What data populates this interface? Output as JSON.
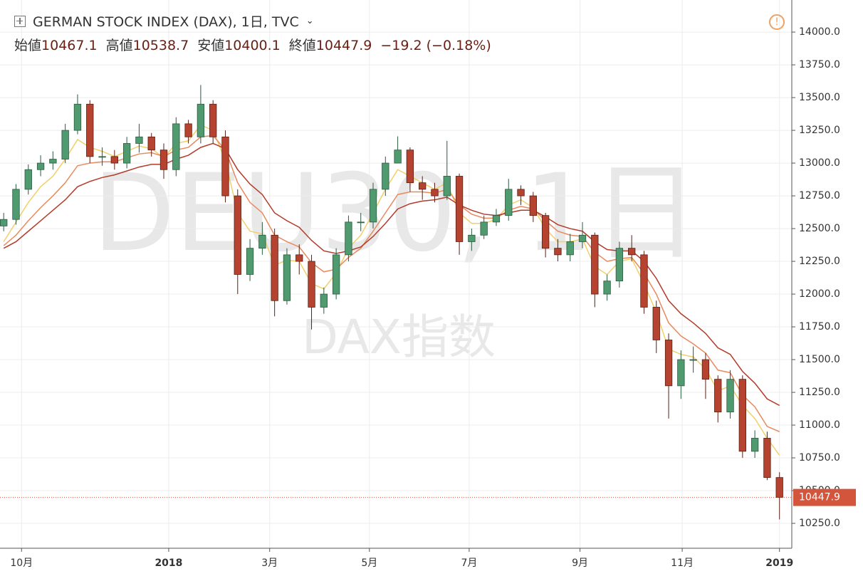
{
  "chart_data": {
    "type": "candlestick",
    "title": "GERMAN STOCK INDEX (DAX), 1日, TVC",
    "watermark": "DEU30, 1日",
    "watermark_sub": "DAX指数",
    "ohlc_labels": [
      {
        "label": "始値",
        "value": "10467.1"
      },
      {
        "label": "高値",
        "value": "10538.7"
      },
      {
        "label": "安値",
        "value": "10400.1"
      },
      {
        "label": "終値",
        "value": "10447.9"
      }
    ],
    "change": "−19.2 (−0.18%)",
    "last_price": 10447.9,
    "last_price_color": "#d2553c",
    "up_color": "#4f9a6f",
    "up_edge": "#2b5a40",
    "down_color": "#b5432f",
    "down_edge": "#5a1f14",
    "open": [
      12520,
      12570,
      12800,
      12950,
      13000,
      13030,
      13250,
      13450,
      13050,
      13050,
      13000,
      13150,
      13200,
      13100,
      12950,
      13300,
      13200,
      13450,
      13200,
      12750,
      12150,
      12350,
      12450,
      11950,
      12300,
      12250,
      11900,
      12000,
      12300,
      12550,
      12550,
      12800,
      13000,
      13100,
      12850,
      12800,
      12750,
      12900,
      12400,
      12450,
      12550,
      12600,
      12800,
      12750,
      12600,
      12350,
      12300,
      12400,
      12450,
      12000,
      12100,
      12350,
      12300,
      11900,
      11650,
      11300,
      11500,
      11500,
      11350,
      11100,
      11350,
      10800,
      10900,
      10600
    ],
    "high": [
      12620,
      12840,
      12990,
      13060,
      13090,
      13300,
      13525,
      13480,
      13120,
      13100,
      13200,
      13300,
      13230,
      13150,
      13350,
      13330,
      13596,
      13480,
      13250,
      12800,
      12420,
      12550,
      12500,
      12350,
      12380,
      12300,
      12050,
      12350,
      12600,
      12620,
      12850,
      13050,
      13204,
      13120,
      12900,
      12850,
      13170,
      12920,
      12500,
      12600,
      12650,
      12880,
      12830,
      12780,
      12620,
      12420,
      12460,
      12550,
      12470,
      12150,
      12400,
      12450,
      12330,
      11950,
      11700,
      11570,
      11600,
      11550,
      11380,
      11420,
      11380,
      10960,
      10950,
      10640
    ],
    "low": [
      12480,
      12530,
      12760,
      12900,
      12950,
      13000,
      13220,
      13000,
      12980,
      12950,
      12960,
      13080,
      13050,
      12880,
      12900,
      13150,
      13150,
      13150,
      12700,
      12000,
      12100,
      12300,
      11830,
      11920,
      12150,
      11730,
      11850,
      11960,
      12250,
      12480,
      12500,
      12750,
      13000,
      12780,
      12720,
      12700,
      12720,
      12300,
      12330,
      12420,
      12520,
      12560,
      12680,
      12550,
      12280,
      12250,
      12250,
      12350,
      11900,
      11950,
      12050,
      12250,
      11850,
      11550,
      11050,
      11200,
      11400,
      11200,
      11020,
      11050,
      10750,
      10750,
      10580,
      10280
    ],
    "close": [
      12570,
      12800,
      12950,
      13000,
      13030,
      13250,
      13450,
      13050,
      13050,
      13000,
      13150,
      13200,
      13100,
      12950,
      13300,
      13200,
      13450,
      13200,
      12750,
      12150,
      12350,
      12450,
      11950,
      12300,
      12250,
      11900,
      12000,
      12300,
      12550,
      12550,
      12800,
      13000,
      13100,
      12850,
      12800,
      12750,
      12900,
      12400,
      12450,
      12550,
      12600,
      12800,
      12750,
      12600,
      12350,
      12300,
      12400,
      12450,
      12000,
      12100,
      12350,
      12300,
      11900,
      11650,
      11300,
      11500,
      11500,
      11350,
      11100,
      11350,
      10800,
      10900,
      10600,
      10447.9
    ],
    "series": [
      {
        "color": "#f2cf6b",
        "values": [
          12400,
          12550,
          12700,
          12820,
          12900,
          13030,
          13180,
          13120,
          13090,
          13050,
          13090,
          13130,
          13110,
          13040,
          13150,
          13170,
          13290,
          13250,
          13020,
          12620,
          12480,
          12460,
          12220,
          12260,
          12250,
          12080,
          12040,
          12160,
          12350,
          12450,
          12620,
          12800,
          12950,
          12900,
          12850,
          12800,
          12850,
          12620,
          12540,
          12540,
          12570,
          12680,
          12720,
          12660,
          12500,
          12400,
          12400,
          12420,
          12210,
          12150,
          12250,
          12270,
          12080,
          11860,
          11580,
          11540,
          11520,
          11430,
          11260,
          11300,
          11150,
          11050,
          10900,
          10770
        ]
      },
      {
        "color": "#e88a5e",
        "values": [
          12370,
          12450,
          12560,
          12660,
          12750,
          12850,
          12980,
          13000,
          13010,
          13010,
          13040,
          13070,
          13080,
          13050,
          13100,
          13120,
          13200,
          13210,
          13100,
          12850,
          12700,
          12620,
          12450,
          12400,
          12360,
          12240,
          12170,
          12190,
          12280,
          12350,
          12480,
          12620,
          12760,
          12780,
          12780,
          12770,
          12800,
          12680,
          12610,
          12580,
          12580,
          12640,
          12670,
          12650,
          12560,
          12480,
          12450,
          12440,
          12320,
          12250,
          12270,
          12280,
          12160,
          12000,
          11780,
          11680,
          11620,
          11550,
          11420,
          11400,
          11230,
          11140,
          10990,
          10950
        ]
      },
      {
        "color": "#b33b2b",
        "values": [
          12350,
          12400,
          12480,
          12560,
          12640,
          12720,
          12820,
          12860,
          12890,
          12910,
          12940,
          12970,
          12990,
          12990,
          13030,
          13060,
          13120,
          13150,
          13110,
          12950,
          12840,
          12760,
          12620,
          12560,
          12510,
          12410,
          12330,
          12310,
          12330,
          12360,
          12440,
          12540,
          12650,
          12690,
          12710,
          12720,
          12740,
          12680,
          12640,
          12610,
          12600,
          12620,
          12640,
          12640,
          12590,
          12530,
          12500,
          12480,
          12400,
          12340,
          12330,
          12330,
          12250,
          12120,
          11950,
          11850,
          11780,
          11700,
          11590,
          11540,
          11410,
          11320,
          11200,
          11150
        ]
      }
    ],
    "xlim": [
      -0.3,
      64
    ],
    "xticks": [
      {
        "value": 1.45,
        "label": "10月"
      },
      {
        "value": 13.4,
        "label": "2018"
      },
      {
        "value": 21.6,
        "label": "3月"
      },
      {
        "value": 29.7,
        "label": "5月"
      },
      {
        "value": 37.8,
        "label": "7月"
      },
      {
        "value": 46.8,
        "label": "9月"
      },
      {
        "value": 55.1,
        "label": "11月"
      },
      {
        "value": 63,
        "label": "2019"
      }
    ],
    "ylim": [
      10060,
      14245
    ],
    "yticks": [
      {
        "value": 10250,
        "label": "10250.0"
      },
      {
        "value": 10500,
        "label": "10500.0"
      },
      {
        "value": 10750,
        "label": "10750.0"
      },
      {
        "value": 11000,
        "label": "11000.0"
      },
      {
        "value": 11250,
        "label": "11250.0"
      },
      {
        "value": 11500,
        "label": "11500.0"
      },
      {
        "value": 11750,
        "label": "11750.0"
      },
      {
        "value": 12000,
        "label": "12000.0"
      },
      {
        "value": 12250,
        "label": "12250.0"
      },
      {
        "value": 12500,
        "label": "12500.0"
      },
      {
        "value": 12750,
        "label": "12750.0"
      },
      {
        "value": 13000,
        "label": "13000.0"
      },
      {
        "value": 13250,
        "label": "13250.0"
      },
      {
        "value": 13500,
        "label": "13500.0"
      },
      {
        "value": 13750,
        "label": "13750.0"
      },
      {
        "value": 14000,
        "label": "14000.0"
      }
    ],
    "grid": true
  }
}
